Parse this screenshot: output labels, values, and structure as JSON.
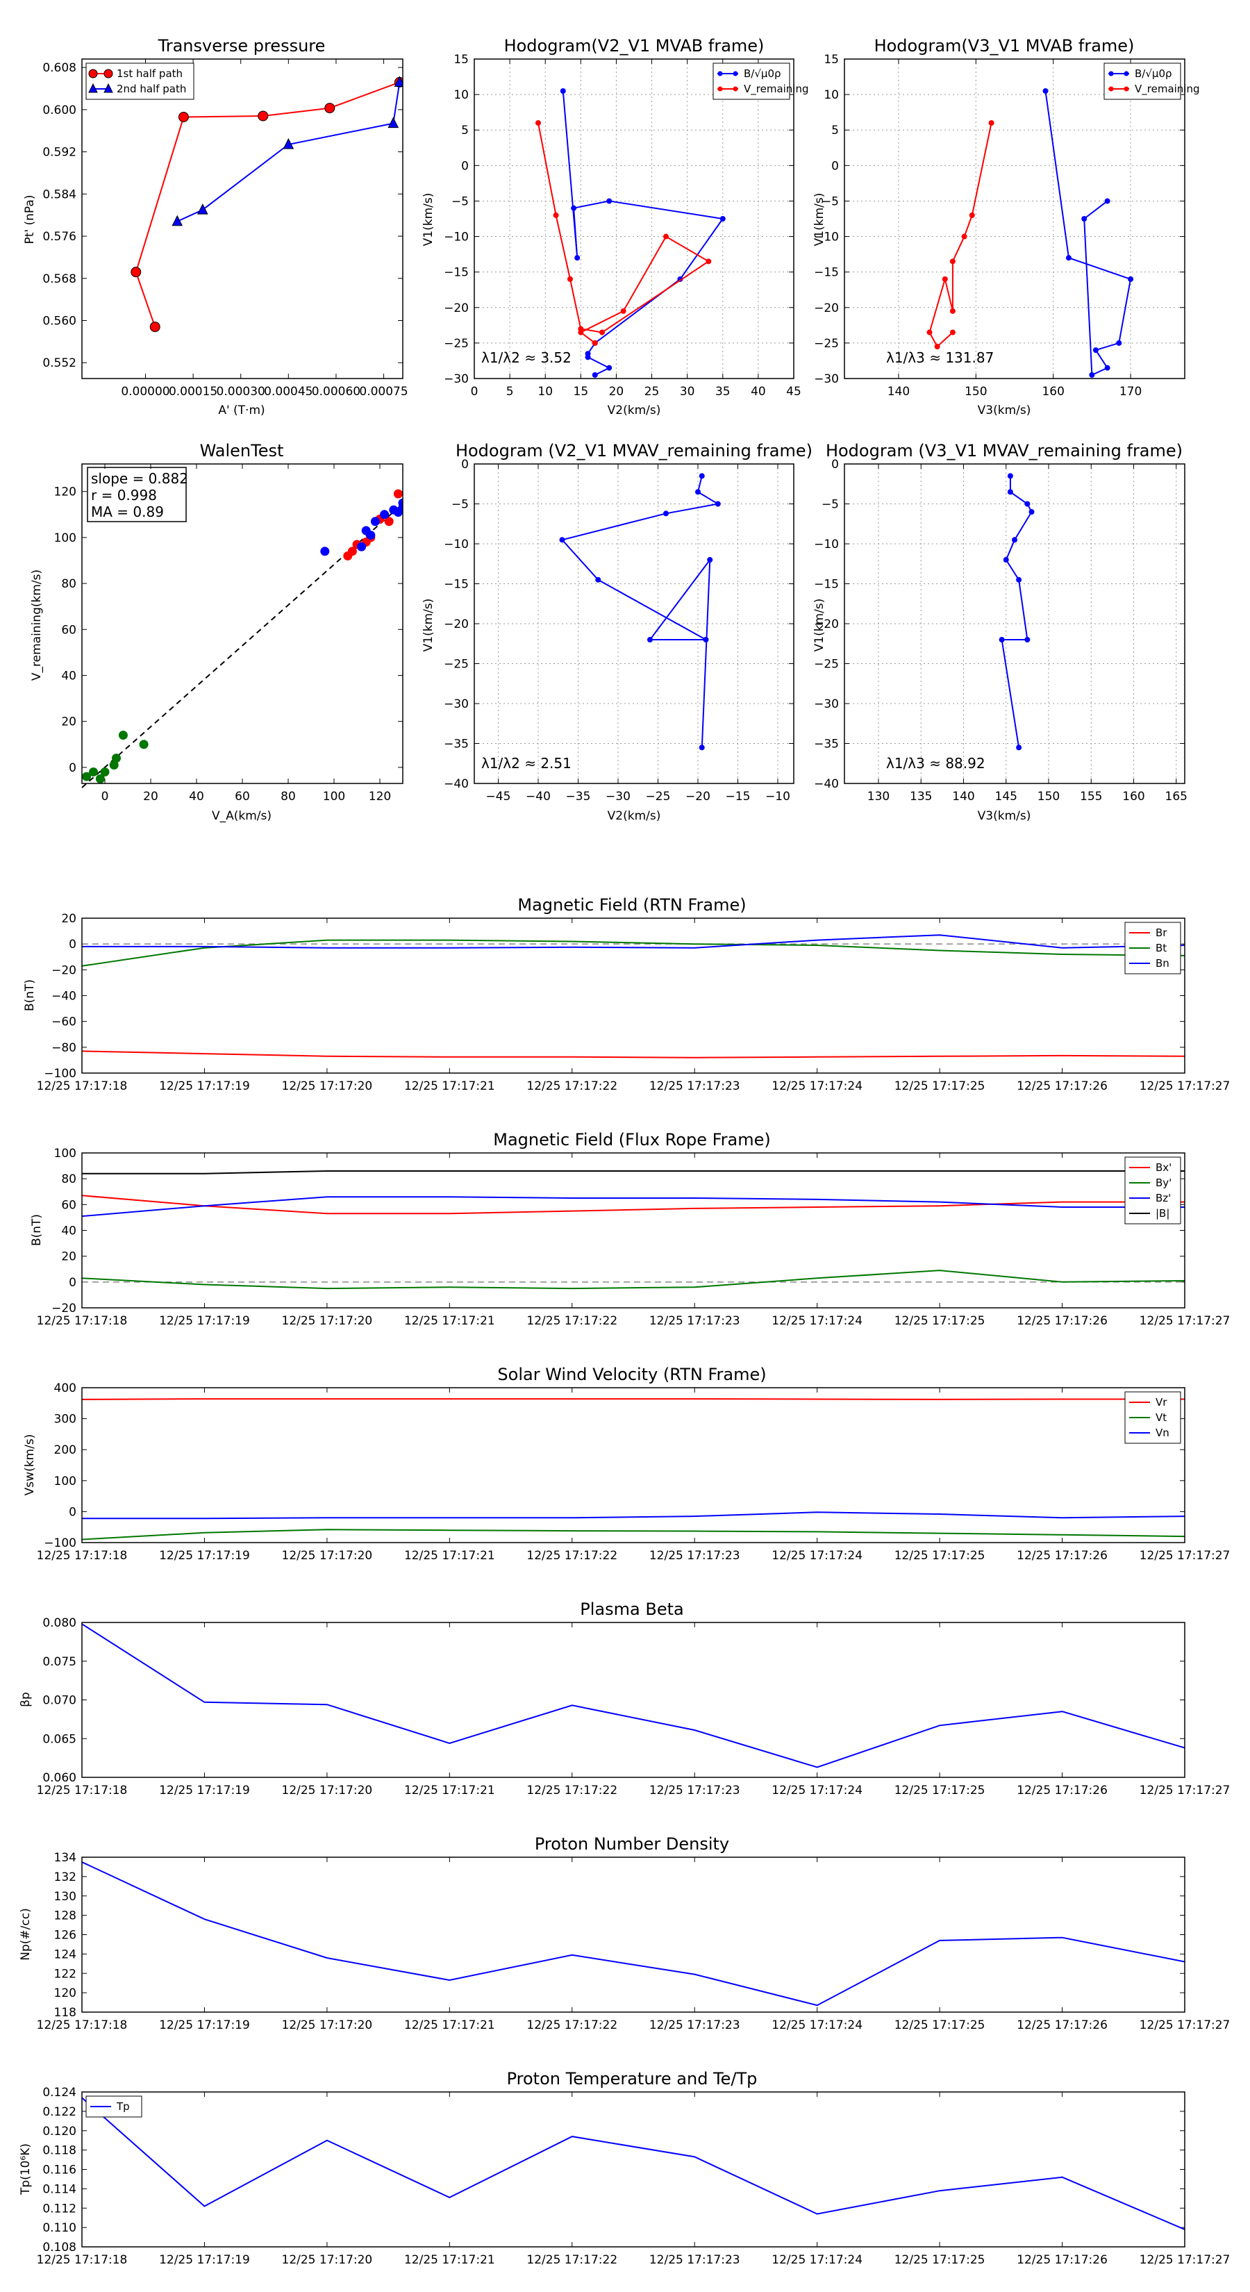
{
  "figure": {
    "title": ""
  },
  "chart_data": [
    {
      "id": "tp",
      "type": "scatter",
      "title": "Transverse pressure",
      "xlabel": "A' (T·m)",
      "ylabel": "Pt' (nPa)",
      "xlim": [
        -0.0002,
        0.00081
      ],
      "ylim": [
        0.549,
        0.6096
      ],
      "xticks": [
        0.0,
        0.00015,
        0.0003,
        0.00045,
        0.0006,
        0.00075
      ],
      "xticklabels": [
        "0.00000",
        "0.00015",
        "0.00030",
        "0.00045",
        "0.00060",
        "0.00075"
      ],
      "yticks": [
        0.552,
        0.56,
        0.568,
        0.576,
        0.584,
        0.592,
        0.6,
        0.608
      ],
      "yticklabels": [
        "0.552",
        "0.560",
        "0.568",
        "0.576",
        "0.584",
        "0.592",
        "0.600",
        "0.608"
      ],
      "grid": false,
      "legend": {
        "position": "top-left"
      },
      "series": [
        {
          "name": "1st half path",
          "color": "#ff0000",
          "marker": "circle",
          "x": [
            3e-05,
            -3e-05,
            0.00012,
            0.00037,
            0.00058,
            0.0008
          ],
          "y": [
            0.5588,
            0.5692,
            0.5986,
            0.5988,
            0.6003,
            0.6052
          ]
        },
        {
          "name": "2nd half path",
          "color": "#0000ff",
          "marker": "triangle",
          "x": [
            0.0008,
            0.00078,
            0.00045,
            0.00018,
            0.0001
          ],
          "y": [
            0.6052,
            0.5974,
            0.5934,
            0.581,
            0.5788
          ]
        }
      ]
    },
    {
      "id": "h1",
      "type": "line",
      "title": "Hodogram(V2_V1 MVAB frame)",
      "xlabel": "V2(km/s)",
      "ylabel": "V1(km/s)",
      "xlim": [
        0,
        45
      ],
      "ylim": [
        -30,
        15
      ],
      "xticks": [
        0,
        5,
        10,
        15,
        20,
        25,
        30,
        35,
        40,
        45
      ],
      "xticklabels": [
        "0",
        "5",
        "10",
        "15",
        "20",
        "25",
        "30",
        "35",
        "40",
        "45"
      ],
      "yticks": [
        -30,
        -25,
        -20,
        -15,
        -10,
        -5,
        0,
        5,
        10,
        15
      ],
      "yticklabels": [
        "−30",
        "−25",
        "−20",
        "−15",
        "−10",
        "−5",
        "0",
        "5",
        "10",
        "15"
      ],
      "grid": true,
      "legend": {
        "position": "top-right"
      },
      "annotation": "λ1/λ2 ≈ 3.52",
      "series": [
        {
          "name": "B/√μ0ρ",
          "color": "#0000ff",
          "x": [
            12.5,
            14.5,
            14,
            19,
            35,
            29,
            17,
            16,
            16,
            19,
            17
          ],
          "y": [
            10.5,
            -13,
            -6,
            -5,
            -7.5,
            -16,
            -25,
            -26.5,
            -27,
            -28.5,
            -29.5
          ]
        },
        {
          "name": "V_remaining",
          "color": "#ff0000",
          "x": [
            9,
            11.5,
            13.5,
            15,
            18,
            33,
            27,
            21,
            15,
            17
          ],
          "y": [
            6,
            -7,
            -16,
            -23,
            -23.5,
            -13.5,
            -10,
            -20.5,
            -23.5,
            -25
          ]
        }
      ]
    },
    {
      "id": "h2",
      "type": "line",
      "title": "Hodogram(V3_V1 MVAB frame)",
      "xlabel": "V3(km/s)",
      "ylabel": "V1(km/s)",
      "xlim": [
        133,
        177
      ],
      "ylim": [
        -30,
        15
      ],
      "xticks": [
        140,
        150,
        160,
        170
      ],
      "xticklabels": [
        "140",
        "150",
        "160",
        "170"
      ],
      "yticks": [
        -30,
        -25,
        -20,
        -15,
        -10,
        -5,
        0,
        5,
        10,
        15
      ],
      "yticklabels": [
        "−30",
        "−25",
        "−20",
        "−15",
        "−10",
        "−5",
        "0",
        "5",
        "10",
        "15"
      ],
      "grid": true,
      "legend": {
        "position": "top-right"
      },
      "annotation": "λ1/λ3 ≈ 131.87",
      "series": [
        {
          "name": "B/√μ0ρ",
          "color": "#0000ff",
          "x": [
            159,
            162,
            170,
            168.5,
            165.5,
            167,
            165,
            164,
            167
          ],
          "y": [
            10.5,
            -13,
            -16,
            -25,
            -26,
            -28.5,
            -29.5,
            -7.5,
            -5
          ]
        },
        {
          "name": "V_remaining",
          "color": "#ff0000",
          "x": [
            152,
            149.5,
            148.5,
            147,
            147,
            146,
            144,
            145,
            147
          ],
          "y": [
            6,
            -7,
            -10,
            -13.5,
            -20.5,
            -16,
            -23.5,
            -25.5,
            -23.5
          ]
        }
      ]
    },
    {
      "id": "walen",
      "type": "scatter",
      "title": "WalenTest",
      "xlabel": "V_A(km/s)",
      "ylabel": "V_remaining(km/s)",
      "xlim": [
        -10,
        130
      ],
      "ylim": [
        -7,
        132
      ],
      "xticks": [
        0,
        20,
        40,
        60,
        80,
        100,
        120
      ],
      "xticklabels": [
        "0",
        "20",
        "40",
        "60",
        "80",
        "100",
        "120"
      ],
      "yticks": [
        0,
        20,
        40,
        60,
        80,
        100,
        120
      ],
      "yticklabels": [
        "0",
        "20",
        "40",
        "60",
        "80",
        "100",
        "120"
      ],
      "grid": false,
      "textbox": [
        "slope = 0.882",
        "r = 0.998",
        "MA = 0.89"
      ],
      "fit_line": [
        [
          -10,
          -8.8
        ],
        [
          130,
          114.7
        ]
      ],
      "series": [
        {
          "name": "green",
          "color": "#007700",
          "x": [
            -8,
            -5,
            -2,
            0,
            4,
            5,
            8,
            17
          ],
          "y": [
            -4,
            -2,
            -5,
            -2,
            1,
            4,
            14,
            10
          ]
        },
        {
          "name": "red",
          "color": "#ff0000",
          "x": [
            106,
            108,
            110,
            112,
            114,
            116,
            120,
            124,
            128
          ],
          "y": [
            92,
            94,
            97,
            96,
            98,
            100,
            108,
            107,
            119
          ]
        },
        {
          "name": "blue",
          "color": "#0000ff",
          "x": [
            96,
            112,
            114,
            116,
            118,
            122,
            126,
            128,
            130,
            130
          ],
          "y": [
            94,
            96,
            103,
            101,
            107,
            110,
            112,
            111,
            113,
            115
          ]
        }
      ]
    },
    {
      "id": "h3",
      "type": "line",
      "title": "Hodogram (V2_V1 MVAV_remaining frame)",
      "xlabel": "V2(km/s)",
      "ylabel": "V1(km/s)",
      "xlim": [
        -48,
        -8
      ],
      "ylim": [
        -40,
        0
      ],
      "xticks": [
        -45,
        -40,
        -35,
        -30,
        -25,
        -20,
        -15,
        -10
      ],
      "xticklabels": [
        "−45",
        "−40",
        "−35",
        "−30",
        "−25",
        "−20",
        "−15",
        "−10"
      ],
      "yticks": [
        -40,
        -35,
        -30,
        -25,
        -20,
        -15,
        -10,
        -5,
        0
      ],
      "yticklabels": [
        "−40",
        "−35",
        "−30",
        "−25",
        "−20",
        "−15",
        "−10",
        "−5",
        "0"
      ],
      "grid": true,
      "annotation": "λ1/λ2 ≈ 2.51",
      "series": [
        {
          "name": "V",
          "color": "#0000ff",
          "x": [
            -19.5,
            -20,
            -17.5,
            -24,
            -37,
            -32.5,
            -19,
            -26,
            -18.5,
            -19.5
          ],
          "y": [
            -1.5,
            -3.5,
            -5,
            -6.2,
            -9.5,
            -14.5,
            -22,
            -22,
            -12,
            -35.5
          ]
        }
      ]
    },
    {
      "id": "h4",
      "type": "line",
      "title": "Hodogram (V3_V1 MVAV_remaining frame)",
      "xlabel": "V3(km/s)",
      "ylabel": "V1(km/s)",
      "xlim": [
        126,
        166
      ],
      "ylim": [
        -40,
        0
      ],
      "xticks": [
        130,
        135,
        140,
        145,
        150,
        155,
        160,
        165
      ],
      "xticklabels": [
        "130",
        "135",
        "140",
        "145",
        "150",
        "155",
        "160",
        "165"
      ],
      "yticks": [
        -40,
        -35,
        -30,
        -25,
        -20,
        -15,
        -10,
        -5,
        0
      ],
      "yticklabels": [
        "−40",
        "−35",
        "−30",
        "−25",
        "−20",
        "−15",
        "−10",
        "−5",
        "0"
      ],
      "grid": true,
      "annotation": "λ1/λ3 ≈ 88.92",
      "series": [
        {
          "name": "V",
          "color": "#0000ff",
          "x": [
            145.5,
            145.5,
            147.5,
            148,
            146,
            145,
            146.5,
            147.5,
            144.5,
            146.5
          ],
          "y": [
            -1.5,
            -3.5,
            -5,
            -6,
            -9.5,
            -12,
            -14.5,
            -22,
            -22,
            -35.5
          ]
        }
      ]
    },
    {
      "id": "brtn",
      "type": "line",
      "title": "Magnetic Field (RTN Frame)",
      "ylabel": "B(nT)",
      "ylim": [
        -100,
        20
      ],
      "zero_line": true,
      "yticks": [
        -100,
        -80,
        -60,
        -40,
        -20,
        0,
        20
      ],
      "yticklabels": [
        "−100",
        "−80",
        "−60",
        "−40",
        "−20",
        "0",
        "20"
      ],
      "legend": {
        "position": "top-right"
      },
      "series": [
        {
          "name": "Br",
          "color": "#ff0000",
          "values": [
            -83,
            -85,
            -87,
            -87.5,
            -87.5,
            -88,
            -87.5,
            -87,
            -86.5,
            -87
          ]
        },
        {
          "name": "Bt",
          "color": "#007700",
          "values": [
            -17,
            -3,
            3,
            3,
            2,
            0,
            -1,
            -5,
            -8,
            -9
          ]
        },
        {
          "name": "Bn",
          "color": "#0000ff",
          "values": [
            -2,
            -2,
            -3,
            -3,
            -2.5,
            -3,
            3,
            7,
            -3,
            -1
          ]
        }
      ]
    },
    {
      "id": "bfr",
      "type": "line",
      "title": "Magnetic Field (Flux Rope Frame)",
      "ylabel": "B(nT)",
      "ylim": [
        -20,
        100
      ],
      "zero_line": true,
      "yticks": [
        -20,
        0,
        20,
        40,
        60,
        80,
        100
      ],
      "yticklabels": [
        "−20",
        "0",
        "20",
        "40",
        "60",
        "80",
        "100"
      ],
      "legend": {
        "position": "top-right"
      },
      "series": [
        {
          "name": "Bx'",
          "color": "#ff0000",
          "values": [
            67,
            59,
            53,
            53,
            55,
            57,
            58,
            59,
            62,
            62
          ]
        },
        {
          "name": "By'",
          "color": "#007700",
          "values": [
            3,
            -2,
            -5,
            -4,
            -5,
            -4,
            3,
            9,
            0,
            1
          ]
        },
        {
          "name": "Bz'",
          "color": "#0000ff",
          "values": [
            51,
            59,
            66,
            66,
            65,
            65,
            64,
            62,
            58,
            58
          ]
        },
        {
          "name": "|B|",
          "color": "#000000",
          "values": [
            84,
            84,
            86,
            86,
            86,
            86,
            86,
            86,
            86,
            86
          ]
        }
      ]
    },
    {
      "id": "vsw",
      "type": "line",
      "title": "Solar Wind Velocity (RTN Frame)",
      "ylabel": "Vsw(km/s)",
      "ylim": [
        -100,
        400
      ],
      "yticks": [
        -100,
        0,
        100,
        200,
        300,
        400
      ],
      "yticklabels": [
        "−100",
        "0",
        "100",
        "200",
        "300",
        "400"
      ],
      "legend": {
        "position": "top-right"
      },
      "series": [
        {
          "name": "Vr",
          "color": "#ff0000",
          "values": [
            362,
            364,
            364,
            364,
            364,
            364,
            363,
            362,
            363,
            363
          ]
        },
        {
          "name": "Vt",
          "color": "#007700",
          "values": [
            -90,
            -68,
            -58,
            -60,
            -62,
            -63,
            -65,
            -70,
            -75,
            -80
          ]
        },
        {
          "name": "Vn",
          "color": "#0000ff",
          "values": [
            -22,
            -22,
            -20,
            -20,
            -20,
            -15,
            -2,
            -8,
            -20,
            -15
          ]
        }
      ]
    },
    {
      "id": "beta",
      "type": "line",
      "title": "Plasma Beta",
      "ylabel": "βp",
      "ylim": [
        0.06,
        0.08
      ],
      "yticks": [
        0.06,
        0.065,
        0.07,
        0.075,
        0.08
      ],
      "yticklabels": [
        "0.060",
        "0.065",
        "0.070",
        "0.075",
        "0.080"
      ],
      "series": [
        {
          "name": "beta",
          "color": "#0000ff",
          "values": [
            0.0798,
            0.0697,
            0.0694,
            0.0644,
            0.0693,
            0.0661,
            0.0613,
            0.0667,
            0.0685,
            0.0638
          ]
        }
      ]
    },
    {
      "id": "np",
      "type": "line",
      "title": "Proton Number Density",
      "ylabel": "Np(#/cc)",
      "ylim": [
        118,
        134
      ],
      "yticks": [
        118,
        120,
        122,
        124,
        126,
        128,
        130,
        132,
        134
      ],
      "yticklabels": [
        "118",
        "120",
        "122",
        "124",
        "126",
        "128",
        "130",
        "132",
        "134"
      ],
      "series": [
        {
          "name": "Np",
          "color": "#0000ff",
          "values": [
            133.5,
            127.6,
            123.6,
            121.3,
            123.9,
            121.9,
            118.7,
            125.4,
            125.7,
            123.2
          ]
        }
      ]
    },
    {
      "id": "tpr",
      "type": "line",
      "title": "Proton Temperature and Te/Tp",
      "ylabel": "Tp(10⁶K)",
      "ylim": [
        0.108,
        0.124
      ],
      "yticks": [
        0.108,
        0.11,
        0.112,
        0.114,
        0.116,
        0.118,
        0.12,
        0.122,
        0.124
      ],
      "yticklabels": [
        "0.108",
        "0.110",
        "0.112",
        "0.114",
        "0.116",
        "0.118",
        "0.120",
        "0.122",
        "0.124"
      ],
      "legend": {
        "position": "top-left"
      },
      "series": [
        {
          "name": "Tp",
          "color": "#0000ff",
          "values": [
            0.1234,
            0.1122,
            0.119,
            0.1131,
            0.1194,
            0.1173,
            0.1114,
            0.1138,
            0.1152,
            0.1098
          ]
        }
      ]
    }
  ],
  "time_axis": {
    "labels": [
      "12/25 17:17:18",
      "12/25 17:17:19",
      "12/25 17:17:20",
      "12/25 17:17:21",
      "12/25 17:17:22",
      "12/25 17:17:23",
      "12/25 17:17:24",
      "12/25 17:17:25",
      "12/25 17:17:26",
      "12/25 17:17:27"
    ]
  }
}
